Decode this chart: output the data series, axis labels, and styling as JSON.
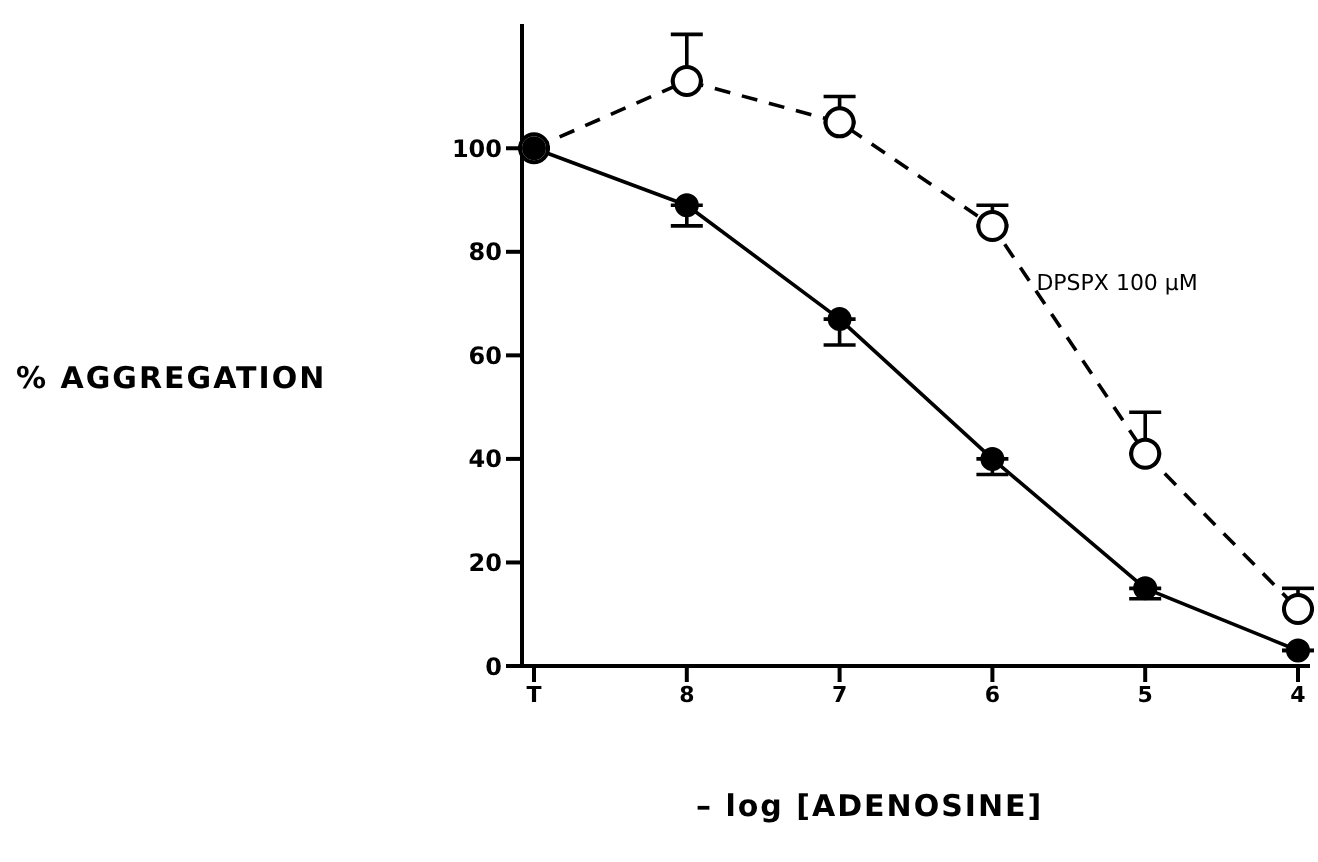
{
  "chart_data": {
    "type": "line",
    "xlabel": "– log [ADENOSINE]",
    "ylabel": "% AGGREGATION",
    "categories": [
      "T",
      "8",
      "7",
      "6",
      "5",
      "4"
    ],
    "ylim": [
      0,
      124
    ],
    "yticks": [
      0,
      20,
      40,
      60,
      80,
      100
    ],
    "grid": false,
    "legend": false,
    "marker": "circle",
    "series": [
      {
        "color": "#000000",
        "line_style": "solid",
        "values": [
          100,
          89,
          67,
          40,
          15,
          3
        ],
        "errors": [
          null,
          [
            85,
            89
          ],
          [
            62,
            67
          ],
          [
            37,
            40
          ],
          [
            13,
            15
          ],
          null
        ]
      },
      {
        "name": "DPSPX 100 μM",
        "color": "#000000",
        "line_style": "dashed",
        "values": [
          100,
          113,
          105,
          85,
          41,
          11
        ],
        "errors": [
          null,
          [
            113,
            122
          ],
          [
            105,
            110
          ],
          [
            85,
            89
          ],
          [
            41,
            49
          ],
          [
            11,
            15
          ]
        ]
      }
    ]
  }
}
